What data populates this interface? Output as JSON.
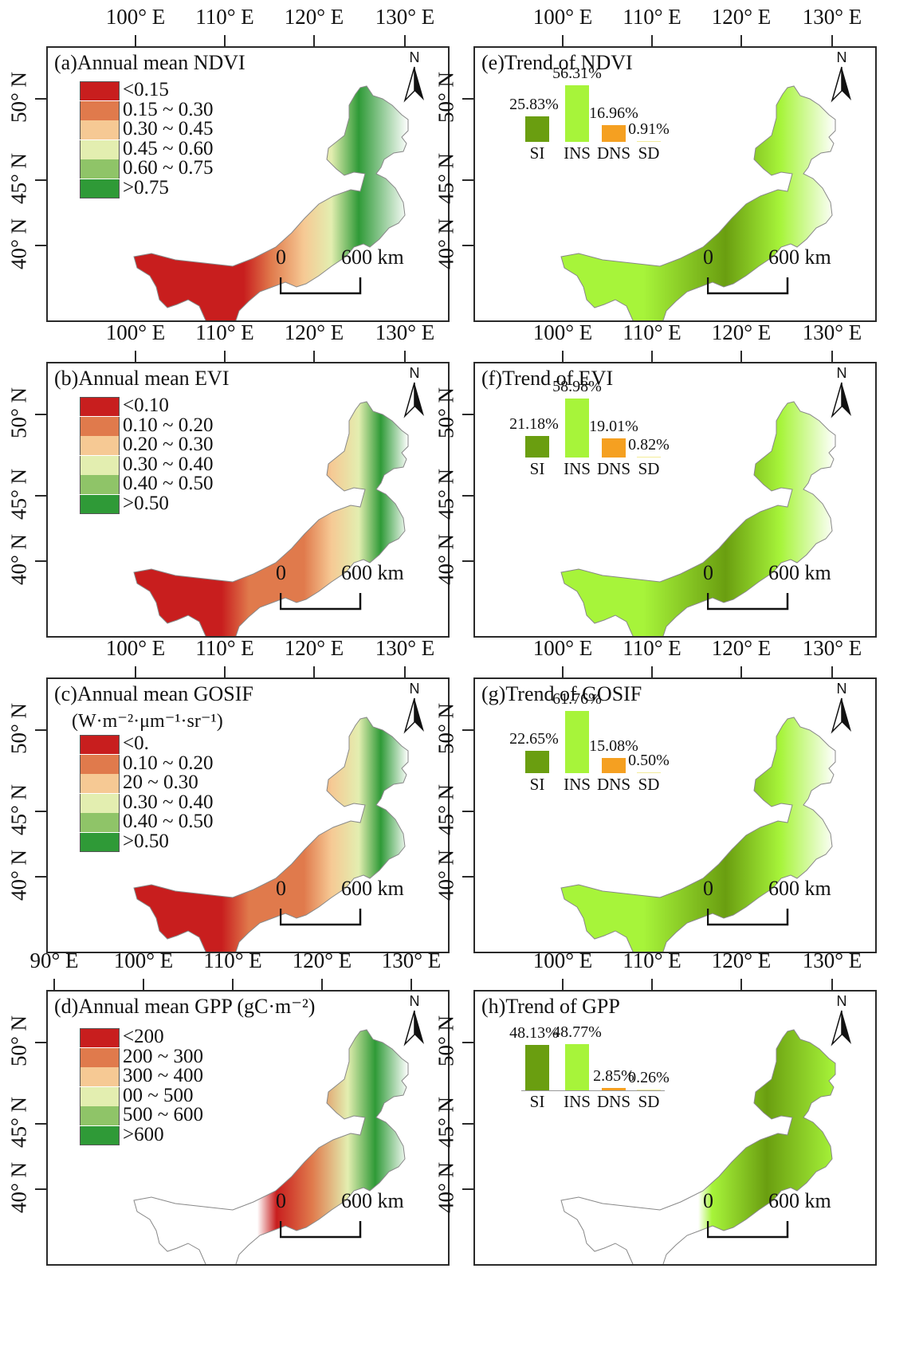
{
  "colors": {
    "legend_mean": [
      "#c81e1e",
      "#e07a4c",
      "#f6c994",
      "#e3eeb0",
      "#8fc468",
      "#2f9a37"
    ],
    "trend": {
      "SI": "#6a9e10",
      "INS": "#a7f43a",
      "DNS": "#f5a021",
      "SD": "#f3ec9a"
    },
    "frame": "#2a2a2a"
  },
  "panels": [
    {
      "id": "a",
      "title": "(a)Annual mean NDVI",
      "unit": "",
      "lon_labels": [
        "100° E",
        "110° E",
        "120° E",
        "130° E"
      ],
      "lat_labels": [
        "50° N",
        "45° N",
        "40° N"
      ],
      "legend": [
        "<0.15",
        "0.15 ~ 0.30",
        "0.30 ~ 0.45",
        "0.45 ~ 0.60",
        "0.60 ~ 0.75",
        ">0.75"
      ],
      "north": "N",
      "scale": {
        "start": "0",
        "end": "600 km"
      }
    },
    {
      "id": "e",
      "title": "(e)Trend of NDVI",
      "lon_labels": [
        "100° E",
        "110° E",
        "120° E",
        "130° E"
      ],
      "lat_labels": [
        "50° N",
        "45° N",
        "40° N"
      ],
      "bars": {
        "categories": [
          "SI",
          "INS",
          "DNS",
          "SD"
        ],
        "values": [
          25.83,
          56.31,
          16.96,
          0.91
        ],
        "labels": [
          "25.83%",
          "56.31%",
          "16.96%",
          "0.91%"
        ]
      },
      "north": "N",
      "scale": {
        "start": "0",
        "end": "600 km"
      }
    },
    {
      "id": "b",
      "title": "(b)Annual mean EVI",
      "unit": "",
      "lon_labels": [
        "100° E",
        "110° E",
        "120° E",
        "130° E"
      ],
      "lat_labels": [
        "50° N",
        "45° N",
        "40° N"
      ],
      "legend": [
        "<0.10",
        "0.10 ~ 0.20",
        "0.20 ~ 0.30",
        "0.30 ~ 0.40",
        "0.40 ~ 0.50",
        ">0.50"
      ],
      "north": "N",
      "scale": {
        "start": "0",
        "end": "600 km"
      }
    },
    {
      "id": "f",
      "title": "(f)Trend of EVI",
      "lon_labels": [
        "100° E",
        "110° E",
        "120° E",
        "130° E"
      ],
      "lat_labels": [
        "50° N",
        "45° N",
        "40° N"
      ],
      "bars": {
        "categories": [
          "SI",
          "INS",
          "DNS",
          "SD"
        ],
        "values": [
          21.18,
          58.98,
          19.01,
          0.82
        ],
        "labels": [
          "21.18%",
          "58.98%",
          "19.01%",
          "0.82%"
        ]
      },
      "north": "N",
      "scale": {
        "start": "0",
        "end": "600 km"
      }
    },
    {
      "id": "c",
      "title": "(c)Annual mean GOSIF",
      "unit": "(W·m⁻²·μm⁻¹·sr⁻¹)",
      "lon_labels": [
        "100° E",
        "110° E",
        "120° E",
        "130° E"
      ],
      "lat_labels": [
        "50° N",
        "45° N",
        "40° N"
      ],
      "legend": [
        "<0.",
        "0.10 ~ 0.20",
        "20 ~ 0.30",
        "0.30 ~ 0.40",
        "0.40 ~ 0.50",
        ">0.50"
      ],
      "north": "N",
      "scale": {
        "start": "0",
        "end": "600 km"
      }
    },
    {
      "id": "g",
      "title": "(g)Trend of GOSIF",
      "lon_labels": [
        "100° E",
        "110° E",
        "120° E",
        "130° E"
      ],
      "lat_labels": [
        "50° N",
        "45° N",
        "40° N"
      ],
      "bars": {
        "categories": [
          "SI",
          "INS",
          "DNS",
          "SD"
        ],
        "values": [
          22.65,
          61.76,
          15.08,
          0.5
        ],
        "labels": [
          "22.65%",
          "61.76%",
          "15.08%",
          "0.50%"
        ]
      },
      "north": "N",
      "scale": {
        "start": "0",
        "end": "600 km"
      }
    },
    {
      "id": "d",
      "title": "(d)Annual mean GPP (gC·m⁻²)",
      "unit": "",
      "lon_labels": [
        "90° E",
        "100° E",
        "110° E",
        "120° E",
        "130° E"
      ],
      "lat_labels": [
        "50° N",
        "45° N",
        "40° N"
      ],
      "legend": [
        "<200",
        "200 ~ 300",
        "300 ~ 400",
        "00 ~ 500",
        "500 ~ 600",
        ">600"
      ],
      "north": "N",
      "scale": {
        "start": "0",
        "end": "600 km"
      }
    },
    {
      "id": "h",
      "title": "(h)Trend of GPP",
      "lon_labels": [
        "100° E",
        "110° E",
        "120° E",
        "130° E"
      ],
      "lat_labels": [
        "50° N",
        "45° N",
        "40° N"
      ],
      "bars": {
        "categories": [
          "SI",
          "INS",
          "DNS",
          "SD"
        ],
        "values": [
          48.13,
          48.77,
          2.85,
          0.26
        ],
        "labels": [
          "48.13%",
          "48.77%",
          "2.85%",
          "0.26%"
        ]
      },
      "north": "N",
      "scale": {
        "start": "0",
        "end": "600 km"
      }
    }
  ]
}
